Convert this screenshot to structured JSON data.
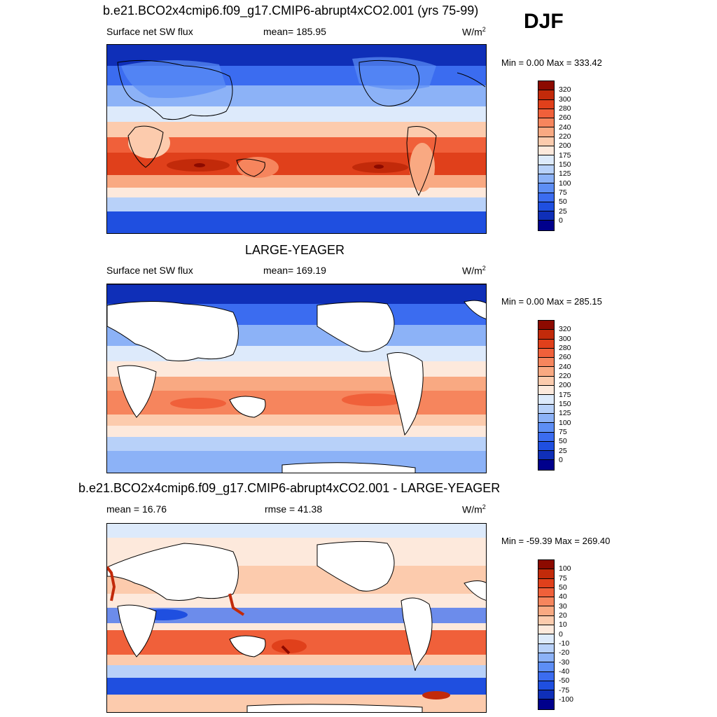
{
  "season": "DJF",
  "colors": {
    "abs_levels": [
      "#00008c",
      "#0f2fb8",
      "#1f4fe0",
      "#3b6cf0",
      "#5d8ef5",
      "#8cb2f7",
      "#b8d1f9",
      "#ddeafb",
      "#fde9dc",
      "#fccbad",
      "#f9a982",
      "#f6855d",
      "#f0603a",
      "#e0401b",
      "#c22a0a",
      "#8c0a00"
    ],
    "diff_levels": [
      "#00008c",
      "#0f2fb8",
      "#1f4fe0",
      "#3b6cf0",
      "#5d8ef5",
      "#8cb2f7",
      "#b8d1f9",
      "#ddeafb",
      "#fde9dc",
      "#fccbad",
      "#f9a982",
      "#f6855d",
      "#f0603a",
      "#e0401b",
      "#c22a0a",
      "#8c0a00"
    ]
  },
  "panels": [
    {
      "title": "b.e21.BCO2x4cmip6.f09_g17.CMIP6-abrupt4xCO2.001 (yrs 75-99)",
      "left_label": "Surface net SW flux",
      "center_label": "mean= 185.95",
      "units": "W/m",
      "units_sup": "2",
      "minmax": "Min =   0.00 Max = 333.42",
      "colorbar_labels": [
        "320",
        "300",
        "280",
        "260",
        "240",
        "220",
        "200",
        "175",
        "150",
        "125",
        "100",
        "75",
        "50",
        "25",
        "0"
      ]
    },
    {
      "title": "LARGE-YEAGER",
      "left_label": "Surface net SW flux",
      "center_label": "mean= 169.19",
      "units": "W/m",
      "units_sup": "2",
      "minmax": "Min =   0.00 Max = 285.15",
      "colorbar_labels": [
        "320",
        "300",
        "280",
        "260",
        "240",
        "220",
        "200",
        "175",
        "150",
        "125",
        "100",
        "75",
        "50",
        "25",
        "0"
      ]
    },
    {
      "title": "b.e21.BCO2x4cmip6.f09_g17.CMIP6-abrupt4xCO2.001 - LARGE-YEAGER",
      "left_label": "mean =  16.76",
      "center_label": "rmse =  41.38",
      "units": "W/m",
      "units_sup": "2",
      "minmax": "Min = -59.39 Max = 269.40",
      "colorbar_labels": [
        "100",
        "75",
        "50",
        "40",
        "30",
        "20",
        "10",
        "0",
        "-10",
        "-20",
        "-30",
        "-40",
        "-50",
        "-75",
        "-100"
      ]
    }
  ]
}
